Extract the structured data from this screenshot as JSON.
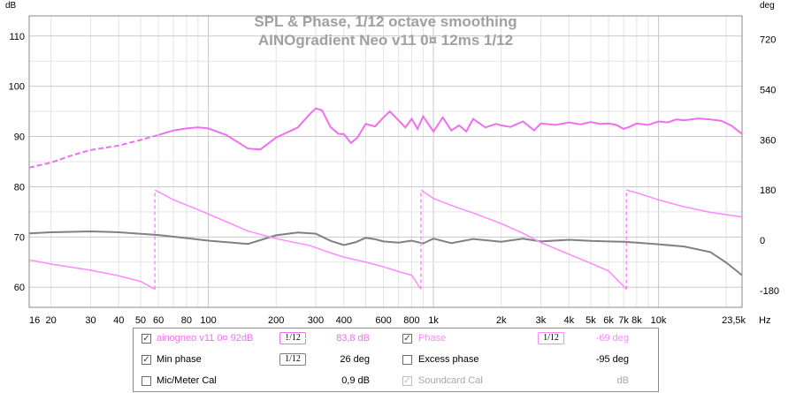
{
  "title": {
    "line1": "SPL & Phase, 1/12 octave smoothing",
    "line2": "AINOgradient Neo v11 0¤ 12ms 1/12"
  },
  "axes": {
    "left_unit": "dB",
    "right_unit": "deg",
    "x_unit": "Hz",
    "left_ticks": [
      "110",
      "100",
      "90",
      "80",
      "70",
      "60"
    ],
    "right_ticks": [
      "720",
      "540",
      "360",
      "180",
      "0",
      "-180"
    ],
    "x_ticks": [
      "16",
      "20",
      "30",
      "40",
      "50",
      "60",
      "80",
      "100",
      "200",
      "300",
      "400",
      "600",
      "800",
      "1k",
      "2k",
      "3k",
      "4k",
      "5k",
      "6k",
      "7k",
      "8k",
      "10k",
      "23,5k"
    ]
  },
  "colors": {
    "spl": "#ef6fef",
    "phase": "#ff88ff",
    "min_phase": "#808080",
    "grid_major": "#c8c8c8",
    "grid_minor": "#e3e3e3"
  },
  "chart_data": {
    "type": "line",
    "title": "SPL & Phase, 1/12 octave smoothing",
    "subtitle": "AINOgradient Neo v11 0¤ 12ms 1/12",
    "x_scale": "log",
    "xlim": [
      16,
      23500
    ],
    "ylim_left_dB": [
      56,
      114
    ],
    "ylim_right_deg": [
      -240,
      804
    ],
    "grid": true,
    "legend_placement": "bottom",
    "series": [
      {
        "name": "ainogneo v11 0¤ 92dB",
        "axis": "left",
        "x": [
          16,
          20,
          25,
          30,
          40,
          50,
          60,
          70,
          80,
          90,
          100,
          120,
          150,
          170,
          200,
          250,
          280,
          300,
          320,
          350,
          380,
          400,
          430,
          460,
          500,
          550,
          600,
          640,
          700,
          750,
          800,
          850,
          900,
          1000,
          1100,
          1200,
          1300,
          1400,
          1500,
          1700,
          1900,
          2000,
          2200,
          2500,
          2800,
          3000,
          3500,
          4000,
          4500,
          5000,
          5500,
          6000,
          6500,
          7000,
          7500,
          8000,
          9000,
          10000,
          11000,
          12000,
          13000,
          15000,
          17000,
          19000,
          21000,
          23500
        ],
        "y": [
          83.8,
          84.8,
          86.3,
          87.3,
          88.2,
          89.3,
          90.3,
          91.2,
          91.6,
          91.8,
          91.6,
          90.3,
          87.6,
          87.4,
          89.8,
          91.8,
          94.3,
          95.6,
          95.2,
          91.8,
          90.5,
          90.5,
          88.7,
          89.8,
          92.5,
          92.0,
          93.8,
          95.0,
          93.2,
          91.8,
          93.5,
          91.5,
          94.0,
          91.0,
          93.8,
          91.2,
          92.2,
          91.0,
          93.5,
          91.8,
          92.5,
          92.2,
          91.9,
          93.0,
          91.2,
          92.6,
          92.3,
          92.8,
          92.4,
          92.9,
          92.5,
          92.6,
          92.3,
          91.5,
          92.0,
          92.6,
          92.3,
          93.0,
          92.8,
          93.4,
          93.2,
          93.6,
          93.4,
          93.1,
          92.2,
          90.5
        ]
      },
      {
        "name": "Phase",
        "axis": "right",
        "x": [
          16,
          20,
          30,
          40,
          50,
          57.9,
          58,
          70,
          90,
          120,
          150,
          200,
          250,
          280,
          300,
          350,
          400,
          500,
          600,
          700,
          800,
          880,
          881,
          1000,
          1200,
          1500,
          2000,
          2500,
          3000,
          4000,
          5000,
          6000,
          7200,
          7201,
          8000,
          10000,
          13000,
          17000,
          23500
        ],
        "y": [
          -70,
          -85,
          -107,
          -127,
          -147,
          -175,
          180,
          145,
          110,
          67,
          33,
          6,
          -10,
          -18,
          -26,
          -45,
          -60,
          -78,
          -95,
          -112,
          -125,
          -175,
          180,
          150,
          125,
          98,
          60,
          25,
          -8,
          -50,
          -82,
          -110,
          -175,
          180,
          170,
          145,
          120,
          100,
          84
        ]
      },
      {
        "name": "Min phase",
        "axis": "right",
        "x": [
          16,
          20,
          30,
          40,
          60,
          80,
          100,
          150,
          200,
          250,
          300,
          350,
          400,
          450,
          500,
          550,
          600,
          700,
          800,
          900,
          1000,
          1200,
          1500,
          2000,
          2500,
          3000,
          4000,
          5000,
          6000,
          7000,
          8000,
          10000,
          13000,
          17000,
          20000,
          23500
        ],
        "y": [
          25,
          29,
          32,
          29,
          19,
          8,
          -1,
          -13,
          18,
          28,
          24,
          -2,
          -17,
          -7,
          9,
          4,
          -4,
          -8,
          -1,
          -11,
          6,
          -10,
          5,
          -5,
          6,
          -4,
          2,
          -2,
          -4,
          -5,
          -8,
          -14,
          -22,
          -42,
          -80,
          -125
        ]
      }
    ],
    "legend_rows": [
      {
        "checked": true,
        "disabled": false,
        "label": "ainogneo v11 0¤ 92dB",
        "smoothing": "1/12",
        "value": "83,8 dB"
      },
      {
        "checked": true,
        "disabled": false,
        "label": "Phase",
        "smoothing": "1/12",
        "value": "-69 deg"
      },
      {
        "checked": true,
        "disabled": false,
        "label": "Min phase",
        "smoothing": "1/12",
        "value": "26 deg"
      },
      {
        "checked": false,
        "disabled": false,
        "label": "Excess phase",
        "smoothing": "",
        "value": "-95 deg"
      },
      {
        "checked": false,
        "disabled": false,
        "label": "Mic/Meter Cal",
        "smoothing": "",
        "value": "0,9 dB"
      },
      {
        "checked": true,
        "disabled": true,
        "label": "Soundcard Cal",
        "smoothing": "",
        "value": "dB"
      }
    ]
  }
}
